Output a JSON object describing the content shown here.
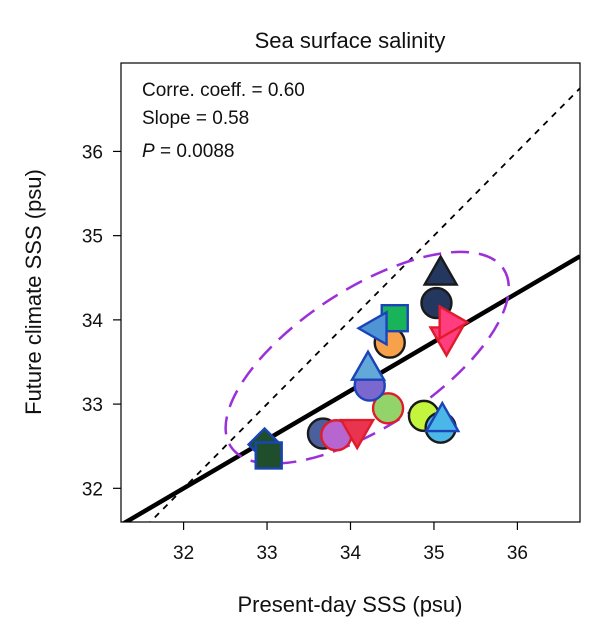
{
  "chart_data": {
    "type": "scatter",
    "title": "Sea surface salinity",
    "xlabel": "Present-day SSS (psu)",
    "ylabel": "Future climate SSS (psu)",
    "xlim": [
      31.25,
      36.75
    ],
    "ylim": [
      31.6,
      37.05
    ],
    "xticks": [
      "32",
      "33",
      "34",
      "35",
      "36"
    ],
    "yticks": [
      "32",
      "33",
      "34",
      "35",
      "36"
    ],
    "grid": false,
    "stats": {
      "corr_label": "Corre. coeff. = 0.60",
      "slope_label": "Slope = 0.58",
      "p_symbol": "P",
      "p_value": " = 0.0088"
    },
    "one_to_one_line": {
      "style": "dashed",
      "color": "#000000"
    },
    "regression_line": {
      "slope": 0.58,
      "intercept": 13.44,
      "color": "#000000"
    },
    "ellipse": {
      "color": "#9b30d9",
      "style": "dashed",
      "center": [
        34.2,
        33.55
      ],
      "x_radius": 1.95,
      "y_radius": 0.82,
      "angle_deg": -33
    },
    "points": [
      {
        "x": 32.97,
        "y": 32.52,
        "shape": "diamond",
        "fill": "#1f4e2c",
        "stroke": "#1b44b8"
      },
      {
        "x": 33.02,
        "y": 32.39,
        "shape": "square",
        "fill": "#1f4e2c",
        "stroke": "#1b44b8"
      },
      {
        "x": 33.67,
        "y": 32.65,
        "shape": "circle",
        "fill": "#4b5f9c",
        "stroke": "#1a1a1a"
      },
      {
        "x": 33.83,
        "y": 32.63,
        "shape": "circle",
        "fill": "#b766cf",
        "stroke": "#e01c2c"
      },
      {
        "x": 34.08,
        "y": 32.68,
        "shape": "triangle-down",
        "fill": "#e8344f",
        "stroke": "#e01c2c"
      },
      {
        "x": 34.45,
        "y": 32.95,
        "shape": "circle",
        "fill": "#92d36a",
        "stroke": "#e01c2c"
      },
      {
        "x": 34.88,
        "y": 32.86,
        "shape": "circle",
        "fill": "#c3f53e",
        "stroke": "#1a1a1a"
      },
      {
        "x": 35.08,
        "y": 32.72,
        "shape": "circle",
        "fill": "#4ab7e8",
        "stroke": "#1a1a1a"
      },
      {
        "x": 35.1,
        "y": 32.81,
        "shape": "triangle-up",
        "fill": "#4ab7e8",
        "stroke": "#1b44b8"
      },
      {
        "x": 34.23,
        "y": 33.22,
        "shape": "circle",
        "fill": "#7a68cf",
        "stroke": "#1b44b8"
      },
      {
        "x": 34.21,
        "y": 33.42,
        "shape": "triangle-up",
        "fill": "#62a8d8",
        "stroke": "#1b44b8"
      },
      {
        "x": 34.47,
        "y": 33.73,
        "shape": "circle",
        "fill": "#f7a24a",
        "stroke": "#1a1a1a"
      },
      {
        "x": 34.53,
        "y": 34.02,
        "shape": "square",
        "fill": "#19b35a",
        "stroke": "#1b44b8"
      },
      {
        "x": 34.3,
        "y": 33.9,
        "shape": "triangle-left",
        "fill": "#4f95d6",
        "stroke": "#1b44b8"
      },
      {
        "x": 35.03,
        "y": 34.2,
        "shape": "circle",
        "fill": "#24375f",
        "stroke": "#1a1a1a"
      },
      {
        "x": 35.08,
        "y": 34.55,
        "shape": "triangle-up",
        "fill": "#24375f",
        "stroke": "#1a1a1a"
      },
      {
        "x": 35.15,
        "y": 33.78,
        "shape": "triangle-down",
        "fill": "#ff3d7f",
        "stroke": "#e01c2c"
      },
      {
        "x": 35.2,
        "y": 33.97,
        "shape": "triangle-right",
        "fill": "#ff3d7f",
        "stroke": "#e01c2c"
      }
    ]
  }
}
